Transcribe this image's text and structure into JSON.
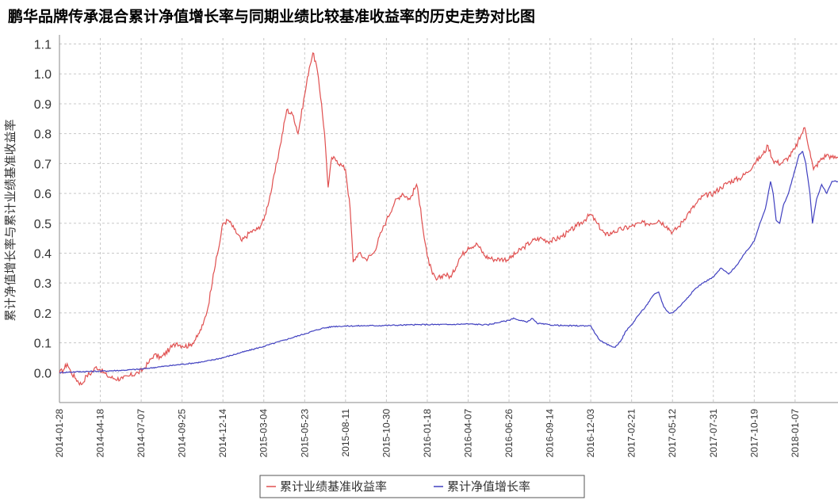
{
  "chart_data": {
    "type": "line",
    "title": "鹏华品牌传承混合累计净值增长率与同期业绩比较基准收益率的历史走势对比图",
    "ylabel": "累计净值增长率与累计业绩基准收益率",
    "xlabel": "",
    "ylim": [
      -0.1,
      1.12
    ],
    "yticks": [
      "0.0",
      "0.1",
      "0.2",
      "0.3",
      "0.4",
      "0.5",
      "0.6",
      "0.7",
      "0.8",
      "0.9",
      "1.0",
      "1.1"
    ],
    "ytick_values": [
      0.0,
      0.1,
      0.2,
      0.3,
      0.4,
      0.5,
      0.6,
      0.7,
      0.8,
      0.9,
      1.0,
      1.1
    ],
    "xlim": [
      "2014-01-28",
      "2018-04-01"
    ],
    "xticks": [
      "2014-01-28",
      "2014-04-18",
      "2014-07-07",
      "2014-09-25",
      "2014-12-14",
      "2015-03-04",
      "2015-05-23",
      "2015-08-11",
      "2015-10-30",
      "2016-01-18",
      "2016-04-07",
      "2016-06-26",
      "2016-09-14",
      "2016-12-03",
      "2017-02-21",
      "2017-05-12",
      "2017-07-31",
      "2017-10-19",
      "2018-01-07"
    ],
    "grid": true,
    "legend_position": "bottom",
    "colors": {
      "benchmark": "#e05050",
      "nav": "#4040c0"
    },
    "series": [
      {
        "name": "累计业绩基准收益率",
        "color": "#e05050",
        "points": [
          [
            "2014-01-28",
            0.0
          ],
          [
            "2014-02-05",
            0.01
          ],
          [
            "2014-02-12",
            0.03
          ],
          [
            "2014-02-20",
            0.0
          ],
          [
            "2014-03-01",
            -0.02
          ],
          [
            "2014-03-12",
            -0.04
          ],
          [
            "2014-03-22",
            -0.01
          ],
          [
            "2014-04-01",
            0.0
          ],
          [
            "2014-04-10",
            0.02
          ],
          [
            "2014-04-18",
            0.01
          ],
          [
            "2014-05-01",
            -0.01
          ],
          [
            "2014-05-15",
            -0.02
          ],
          [
            "2014-06-01",
            -0.02
          ],
          [
            "2014-06-15",
            -0.01
          ],
          [
            "2014-07-01",
            0.0
          ],
          [
            "2014-07-10",
            0.01
          ],
          [
            "2014-07-20",
            0.03
          ],
          [
            "2014-08-01",
            0.06
          ],
          [
            "2014-08-15",
            0.05
          ],
          [
            "2014-09-01",
            0.08
          ],
          [
            "2014-09-15",
            0.1
          ],
          [
            "2014-09-25",
            0.09
          ],
          [
            "2014-10-10",
            0.09
          ],
          [
            "2014-10-25",
            0.12
          ],
          [
            "2014-11-05",
            0.16
          ],
          [
            "2014-11-15",
            0.22
          ],
          [
            "2014-11-25",
            0.33
          ],
          [
            "2014-12-05",
            0.41
          ],
          [
            "2014-12-14",
            0.5
          ],
          [
            "2014-12-25",
            0.51
          ],
          [
            "2015-01-05",
            0.48
          ],
          [
            "2015-01-20",
            0.44
          ],
          [
            "2015-02-05",
            0.47
          ],
          [
            "2015-02-20",
            0.48
          ],
          [
            "2015-03-04",
            0.51
          ],
          [
            "2015-03-20",
            0.62
          ],
          [
            "2015-04-05",
            0.76
          ],
          [
            "2015-04-18",
            0.88
          ],
          [
            "2015-05-01",
            0.86
          ],
          [
            "2015-05-10",
            0.8
          ],
          [
            "2015-05-23",
            0.93
          ],
          [
            "2015-06-01",
            1.02
          ],
          [
            "2015-06-08",
            1.07
          ],
          [
            "2015-06-15",
            1.03
          ],
          [
            "2015-06-25",
            0.9
          ],
          [
            "2015-07-01",
            0.8
          ],
          [
            "2015-07-08",
            0.62
          ],
          [
            "2015-07-15",
            0.72
          ],
          [
            "2015-07-25",
            0.71
          ],
          [
            "2015-08-05",
            0.69
          ],
          [
            "2015-08-11",
            0.68
          ],
          [
            "2015-08-20",
            0.55
          ],
          [
            "2015-08-26",
            0.37
          ],
          [
            "2015-09-05",
            0.4
          ],
          [
            "2015-09-20",
            0.38
          ],
          [
            "2015-10-05",
            0.4
          ],
          [
            "2015-10-20",
            0.47
          ],
          [
            "2015-10-30",
            0.51
          ],
          [
            "2015-11-15",
            0.57
          ],
          [
            "2015-11-30",
            0.6
          ],
          [
            "2015-12-15",
            0.58
          ],
          [
            "2015-12-28",
            0.63
          ],
          [
            "2016-01-05",
            0.55
          ],
          [
            "2016-01-12",
            0.45
          ],
          [
            "2016-01-18",
            0.39
          ],
          [
            "2016-01-28",
            0.33
          ],
          [
            "2016-02-05",
            0.31
          ],
          [
            "2016-02-20",
            0.33
          ],
          [
            "2016-03-05",
            0.32
          ],
          [
            "2016-03-20",
            0.38
          ],
          [
            "2016-04-07",
            0.42
          ],
          [
            "2016-04-25",
            0.43
          ],
          [
            "2016-05-10",
            0.39
          ],
          [
            "2016-05-25",
            0.38
          ],
          [
            "2016-06-10",
            0.38
          ],
          [
            "2016-06-26",
            0.38
          ],
          [
            "2016-07-10",
            0.4
          ],
          [
            "2016-07-25",
            0.42
          ],
          [
            "2016-08-10",
            0.44
          ],
          [
            "2016-08-25",
            0.45
          ],
          [
            "2016-09-14",
            0.44
          ],
          [
            "2016-10-01",
            0.45
          ],
          [
            "2016-10-20",
            0.47
          ],
          [
            "2016-11-05",
            0.49
          ],
          [
            "2016-11-20",
            0.51
          ],
          [
            "2016-12-03",
            0.53
          ],
          [
            "2016-12-15",
            0.5
          ],
          [
            "2017-01-01",
            0.46
          ],
          [
            "2017-01-15",
            0.47
          ],
          [
            "2017-02-01",
            0.48
          ],
          [
            "2017-02-21",
            0.49
          ],
          [
            "2017-03-10",
            0.5
          ],
          [
            "2017-03-30",
            0.5
          ],
          [
            "2017-04-15",
            0.51
          ],
          [
            "2017-05-01",
            0.49
          ],
          [
            "2017-05-12",
            0.47
          ],
          [
            "2017-05-25",
            0.49
          ],
          [
            "2017-06-10",
            0.53
          ],
          [
            "2017-06-25",
            0.56
          ],
          [
            "2017-07-10",
            0.59
          ],
          [
            "2017-07-31",
            0.6
          ],
          [
            "2017-08-15",
            0.62
          ],
          [
            "2017-09-01",
            0.64
          ],
          [
            "2017-09-20",
            0.65
          ],
          [
            "2017-10-05",
            0.67
          ],
          [
            "2017-10-19",
            0.7
          ],
          [
            "2017-11-05",
            0.73
          ],
          [
            "2017-11-15",
            0.76
          ],
          [
            "2017-11-25",
            0.71
          ],
          [
            "2017-12-10",
            0.7
          ],
          [
            "2017-12-25",
            0.72
          ],
          [
            "2018-01-07",
            0.75
          ],
          [
            "2018-01-20",
            0.8
          ],
          [
            "2018-01-26",
            0.82
          ],
          [
            "2018-02-05",
            0.74
          ],
          [
            "2018-02-12",
            0.68
          ],
          [
            "2018-02-25",
            0.71
          ],
          [
            "2018-03-10",
            0.73
          ],
          [
            "2018-03-20",
            0.72
          ],
          [
            "2018-04-01",
            0.72
          ]
        ]
      },
      {
        "name": "累计净值增长率",
        "color": "#4040c0",
        "points": [
          [
            "2014-01-28",
            0.0
          ],
          [
            "2014-03-01",
            0.003
          ],
          [
            "2014-04-18",
            0.005
          ],
          [
            "2014-06-01",
            0.008
          ],
          [
            "2014-07-07",
            0.012
          ],
          [
            "2014-08-15",
            0.02
          ],
          [
            "2014-09-25",
            0.028
          ],
          [
            "2014-11-05",
            0.036
          ],
          [
            "2014-12-14",
            0.05
          ],
          [
            "2015-01-20",
            0.068
          ],
          [
            "2015-03-04",
            0.088
          ],
          [
            "2015-04-15",
            0.11
          ],
          [
            "2015-05-23",
            0.13
          ],
          [
            "2015-06-25",
            0.148
          ],
          [
            "2015-07-20",
            0.155
          ],
          [
            "2015-08-11",
            0.156
          ],
          [
            "2015-09-15",
            0.157
          ],
          [
            "2015-10-30",
            0.158
          ],
          [
            "2015-12-15",
            0.16
          ],
          [
            "2016-01-18",
            0.161
          ],
          [
            "2016-03-01",
            0.161
          ],
          [
            "2016-04-07",
            0.163
          ],
          [
            "2016-05-15",
            0.16
          ],
          [
            "2016-06-10",
            0.17
          ],
          [
            "2016-06-26",
            0.175
          ],
          [
            "2016-07-05",
            0.183
          ],
          [
            "2016-07-15",
            0.175
          ],
          [
            "2016-08-01",
            0.17
          ],
          [
            "2016-08-10",
            0.182
          ],
          [
            "2016-08-20",
            0.165
          ],
          [
            "2016-09-14",
            0.16
          ],
          [
            "2016-10-15",
            0.157
          ],
          [
            "2016-11-15",
            0.157
          ],
          [
            "2016-12-03",
            0.157
          ],
          [
            "2016-12-12",
            0.13
          ],
          [
            "2016-12-20",
            0.11
          ],
          [
            "2016-12-28",
            0.1
          ],
          [
            "2017-01-10",
            0.09
          ],
          [
            "2017-01-20",
            0.085
          ],
          [
            "2017-02-01",
            0.11
          ],
          [
            "2017-02-10",
            0.14
          ],
          [
            "2017-02-21",
            0.16
          ],
          [
            "2017-03-05",
            0.19
          ],
          [
            "2017-03-20",
            0.22
          ],
          [
            "2017-04-05",
            0.26
          ],
          [
            "2017-04-15",
            0.27
          ],
          [
            "2017-04-25",
            0.22
          ],
          [
            "2017-05-05",
            0.2
          ],
          [
            "2017-05-12",
            0.2
          ],
          [
            "2017-05-25",
            0.22
          ],
          [
            "2017-06-10",
            0.25
          ],
          [
            "2017-06-25",
            0.28
          ],
          [
            "2017-07-10",
            0.3
          ],
          [
            "2017-07-31",
            0.32
          ],
          [
            "2017-08-15",
            0.35
          ],
          [
            "2017-08-30",
            0.33
          ],
          [
            "2017-09-15",
            0.36
          ],
          [
            "2017-10-01",
            0.4
          ],
          [
            "2017-10-19",
            0.44
          ],
          [
            "2017-10-30",
            0.5
          ],
          [
            "2017-11-10",
            0.55
          ],
          [
            "2017-11-20",
            0.64
          ],
          [
            "2017-11-25",
            0.6
          ],
          [
            "2017-12-01",
            0.51
          ],
          [
            "2017-12-08",
            0.5
          ],
          [
            "2017-12-15",
            0.56
          ],
          [
            "2017-12-25",
            0.6
          ],
          [
            "2018-01-07",
            0.68
          ],
          [
            "2018-01-15",
            0.73
          ],
          [
            "2018-01-22",
            0.74
          ],
          [
            "2018-01-28",
            0.7
          ],
          [
            "2018-02-05",
            0.6
          ],
          [
            "2018-02-10",
            0.5
          ],
          [
            "2018-02-18",
            0.58
          ],
          [
            "2018-02-28",
            0.63
          ],
          [
            "2018-03-10",
            0.6
          ],
          [
            "2018-03-20",
            0.64
          ],
          [
            "2018-04-01",
            0.64
          ]
        ]
      }
    ]
  }
}
